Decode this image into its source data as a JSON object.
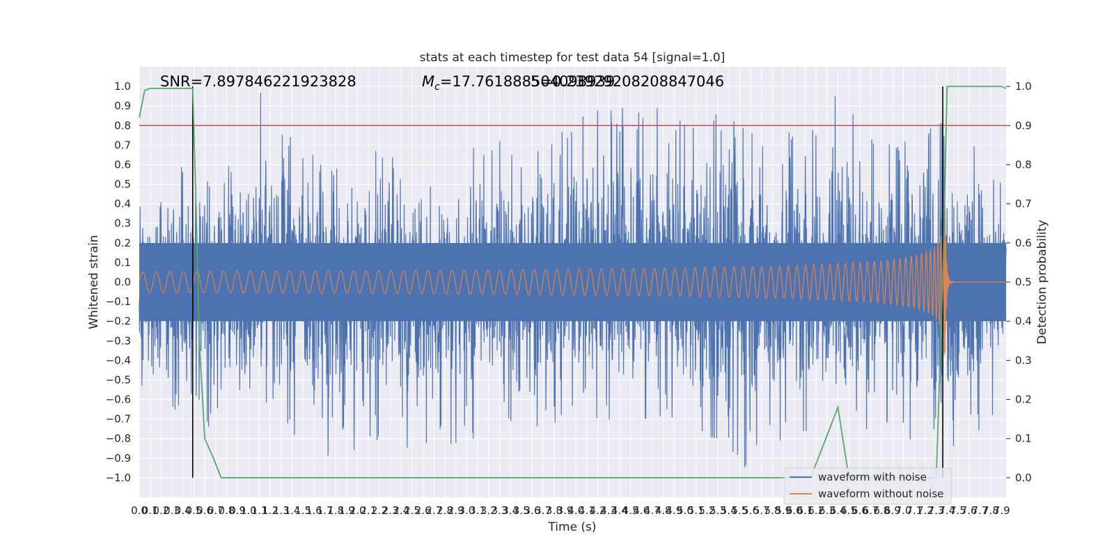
{
  "chart_data": {
    "type": "line",
    "title": "stats at each timestep for test data 54 [signal=1.0]",
    "xlabel": "Time (s)",
    "ylabel": "Whitened strain",
    "ylabel_right": "Detection probability",
    "xlim": [
      0.0,
      7.94
    ],
    "ylim": [
      -1.1,
      1.1
    ],
    "ylim_right": [
      -0.05,
      1.05
    ],
    "x_ticks": [
      0.0,
      0.1,
      0.2,
      0.3,
      0.4,
      0.5,
      0.6,
      0.7,
      0.8,
      0.9,
      1.0,
      1.1,
      1.2,
      1.3,
      1.4,
      1.5,
      1.6,
      1.7,
      1.8,
      1.9,
      2.0,
      2.1,
      2.2,
      2.3,
      2.4,
      2.5,
      2.6,
      2.7,
      2.8,
      2.9,
      3.0,
      3.1,
      3.2,
      3.3,
      3.4,
      3.5,
      3.6,
      3.7,
      3.8,
      3.9,
      4.0,
      4.1,
      4.2,
      4.3,
      4.4,
      4.5,
      4.6,
      4.7,
      4.8,
      4.9,
      5.0,
      5.1,
      5.2,
      5.3,
      5.4,
      5.5,
      5.6,
      5.7,
      5.8,
      5.9,
      6.0,
      6.1,
      6.2,
      6.3,
      6.4,
      6.5,
      6.6,
      6.7,
      6.8,
      6.9,
      7.0,
      7.1,
      7.2,
      7.3,
      7.4,
      7.5,
      7.6,
      7.7,
      7.8,
      7.9
    ],
    "x_tick_labels": [
      "0.0",
      "0.1",
      "0.2",
      "0.3",
      "0.4",
      "0.5",
      "0.6",
      "0.7",
      "0.8",
      "0.9",
      "1.0",
      "1.1",
      "1.2",
      "1.3",
      "1.4",
      "1.5",
      "1.6",
      "1.7",
      "1.8",
      "1.9",
      "2.0",
      "2.1",
      "2.2",
      "2.3",
      "2.4",
      "2.5",
      "2.6",
      "2.7",
      "2.8",
      "2.9",
      "3.0",
      "3.1",
      "3.2",
      "3.3",
      "3.4",
      "3.5",
      "3.6",
      "3.7",
      "3.8",
      "3.9",
      "4.0",
      "4.1",
      "4.2",
      "4.3",
      "4.4",
      "4.5",
      "4.6",
      "4.7",
      "4.8",
      "4.9",
      "5.0",
      "5.1",
      "5.2",
      "5.3",
      "5.4",
      "5.5",
      "5.6",
      "5.7",
      "5.8",
      "5.9",
      "6.0",
      "6.1",
      "6.2",
      "6.3",
      "6.4",
      "6.5",
      "6.6",
      "6.7",
      "6.8",
      "6.9",
      "7.0",
      "7.1",
      "7.2",
      "7.3",
      "7.4",
      "7.5",
      "7.6",
      "7.7",
      "7.8",
      "7.9"
    ],
    "y_ticks": [
      -1.0,
      -0.9,
      -0.8,
      -0.7,
      -0.6,
      -0.5,
      -0.4,
      -0.3,
      -0.2,
      -0.1,
      0.0,
      0.1,
      0.2,
      0.3,
      0.4,
      0.5,
      0.6,
      0.7,
      0.8,
      0.9,
      1.0
    ],
    "y_tick_labels": [
      "−1.0",
      "−0.9",
      "−0.8",
      "−0.7",
      "−0.6",
      "−0.5",
      "−0.4",
      "−0.3",
      "−0.2",
      "−0.1",
      "0.0",
      "0.1",
      "0.2",
      "0.3",
      "0.4",
      "0.5",
      "0.6",
      "0.7",
      "0.8",
      "0.9",
      "1.0"
    ],
    "y_ticks_right": [
      0.0,
      0.1,
      0.2,
      0.3,
      0.4,
      0.5,
      0.6,
      0.7,
      0.8,
      0.9,
      1.0
    ],
    "y_tick_labels_right": [
      "0.0",
      "0.1",
      "0.2",
      "0.3",
      "0.4",
      "0.5",
      "0.6",
      "0.7",
      "0.8",
      "0.9",
      "1.0"
    ],
    "grid": true,
    "legend_placement": "lower-right",
    "annotations": {
      "snr": "SNR=7.897846221923828",
      "mc_symbol": "M",
      "mc_sub": "c",
      "mc_value": "=17.761888504098939",
      "mc_overlap": "5=0.23929208208847046"
    },
    "series": [
      {
        "name": "waveform with noise",
        "color": "#4c72b0",
        "style": "noise",
        "envelope_points": [
          [
            0.0,
            0.55,
            -0.55
          ],
          [
            0.3,
            0.6,
            -0.8
          ],
          [
            0.5,
            0.6,
            -0.55
          ],
          [
            0.7,
            0.55,
            -0.87
          ],
          [
            1.0,
            0.7,
            -0.8
          ],
          [
            1.1,
            0.99,
            -0.6
          ],
          [
            1.3,
            0.85,
            -0.75
          ],
          [
            1.7,
            0.6,
            -0.99
          ],
          [
            2.2,
            0.7,
            -0.82
          ],
          [
            2.6,
            0.55,
            -0.87
          ],
          [
            3.2,
            0.75,
            -0.8
          ],
          [
            3.6,
            0.65,
            -0.75
          ],
          [
            4.1,
            0.88,
            -0.7
          ],
          [
            4.5,
            0.9,
            -0.74
          ],
          [
            5.0,
            0.88,
            -0.75
          ],
          [
            5.5,
            0.84,
            -0.97
          ],
          [
            6.1,
            0.75,
            -0.78
          ],
          [
            6.4,
            0.99,
            -0.72
          ],
          [
            6.8,
            0.78,
            -0.77
          ],
          [
            7.3,
            0.82,
            -0.87
          ],
          [
            7.6,
            0.86,
            -0.9
          ],
          [
            7.94,
            0.45,
            -0.6
          ]
        ]
      },
      {
        "name": "waveform without noise",
        "color": "#dd8452",
        "style": "chirp",
        "merger_time": 7.38,
        "peak_amplitude": 0.44
      },
      {
        "name": "detection probability",
        "axis": "right",
        "color": "#55a868",
        "x": [
          0.0,
          0.05,
          0.1,
          0.2,
          0.3,
          0.4,
          0.49,
          0.52,
          0.55,
          0.6,
          0.68,
          0.75,
          1.5,
          2.5,
          3.5,
          4.5,
          5.5,
          5.9,
          6.15,
          6.4,
          6.5,
          6.6,
          7.0,
          7.2,
          7.3,
          7.36,
          7.4,
          7.5,
          7.7,
          7.9,
          7.94
        ],
        "y": [
          0.92,
          0.99,
          0.995,
          0.995,
          0.995,
          0.995,
          0.995,
          0.7,
          0.35,
          0.1,
          0.05,
          0.0,
          0.0,
          0.0,
          0.0,
          0.0,
          0.0,
          0.0,
          0.0,
          0.18,
          0.0,
          0.0,
          0.0,
          0.0,
          0.0,
          0.5,
          1.0,
          1.0,
          1.0,
          1.0,
          0.995
        ]
      }
    ],
    "threshold": {
      "axis": "right",
      "value": 0.9,
      "color": "#c44e52"
    },
    "vertical_markers": {
      "color": "#000000",
      "x": [
        0.49,
        7.36
      ],
      "ymin": -1.0,
      "ymax": 1.0
    }
  },
  "legend": {
    "items": [
      {
        "label": "waveform with noise",
        "color": "#4c72b0"
      },
      {
        "label": "waveform without noise",
        "color": "#dd8452"
      }
    ]
  },
  "style": {
    "plot_background": "#eaeaf2",
    "grid_color": "#ffffff"
  }
}
